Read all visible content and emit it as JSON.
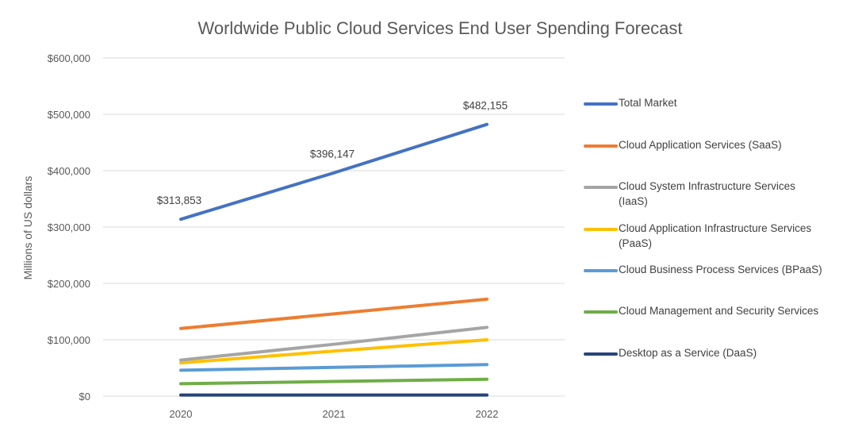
{
  "chart_data": {
    "type": "line",
    "title": "Worldwide Public Cloud Services End User Spending Forecast",
    "xlabel": "",
    "ylabel": "Millions of US dollars",
    "categories": [
      "2020",
      "2021",
      "2022"
    ],
    "ylim": [
      0,
      600000
    ],
    "yticks": [
      "$0",
      "$100,000",
      "$200,000",
      "$300,000",
      "$400,000",
      "$500,000",
      "$600,000"
    ],
    "grid": true,
    "legend_position": "right",
    "series": [
      {
        "name": "Total Market",
        "values": [
          313853,
          396147,
          482155
        ],
        "color": "#4472c4",
        "labels": [
          "$313,853",
          "$396,147",
          "$482,155"
        ]
      },
      {
        "name": "Cloud Application Services (SaaS)",
        "values": [
          120000,
          146000,
          172000
        ],
        "color": "#ed7d31"
      },
      {
        "name": "Cloud System Infrastructure Services (IaaS)",
        "values": [
          64000,
          92000,
          122000
        ],
        "color": "#a5a5a5"
      },
      {
        "name": "Cloud Application Infrastructure Services (PaaS)",
        "values": [
          59000,
          80000,
          100000
        ],
        "color": "#ffc000"
      },
      {
        "name": "Cloud Business Process Services (BPaaS)",
        "values": [
          46000,
          51000,
          56000
        ],
        "color": "#5b9bd5"
      },
      {
        "name": "Cloud Management and Security Services",
        "values": [
          22000,
          26000,
          30000
        ],
        "color": "#70ad47"
      },
      {
        "name": "Desktop as a Service (DaaS)",
        "values": [
          2000,
          2000,
          2000
        ],
        "color": "#264478"
      }
    ]
  }
}
